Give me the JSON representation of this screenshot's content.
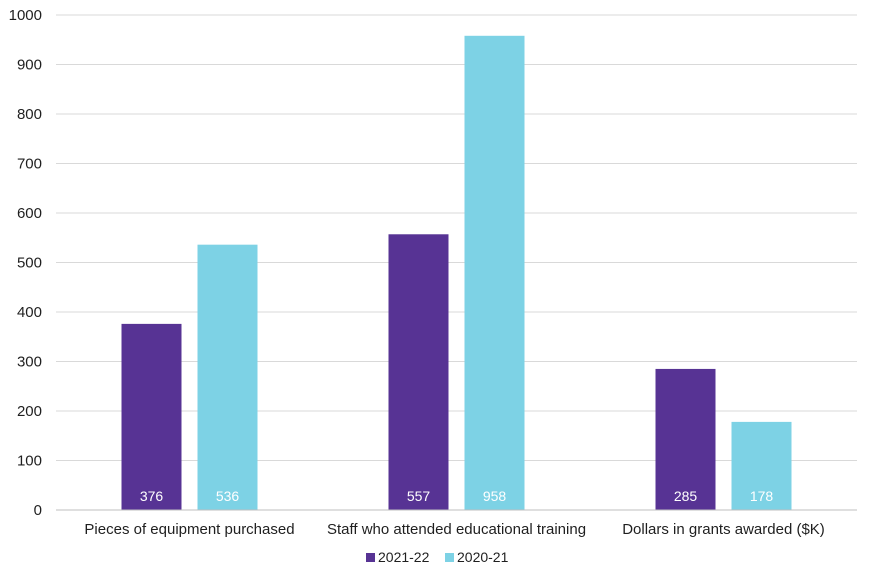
{
  "chart_data": {
    "type": "bar",
    "title": "",
    "xlabel": "",
    "ylabel": "",
    "categories": [
      "Pieces of equipment purchased",
      "Staff who attended educational training",
      "Dollars in grants awarded ($K)"
    ],
    "series": [
      {
        "name": "2021-22",
        "color": "#573394",
        "values": [
          376,
          557,
          285
        ]
      },
      {
        "name": "2020-21",
        "color": "#7dd2e5",
        "values": [
          536,
          958,
          178
        ]
      }
    ],
    "ylim": [
      0,
      1000
    ],
    "yticks": [
      0,
      100,
      200,
      300,
      400,
      500,
      600,
      700,
      800,
      900,
      1000
    ],
    "grid": true,
    "gridColor": "#d9d9d9",
    "data_labels": true,
    "legend_position": "bottom"
  }
}
